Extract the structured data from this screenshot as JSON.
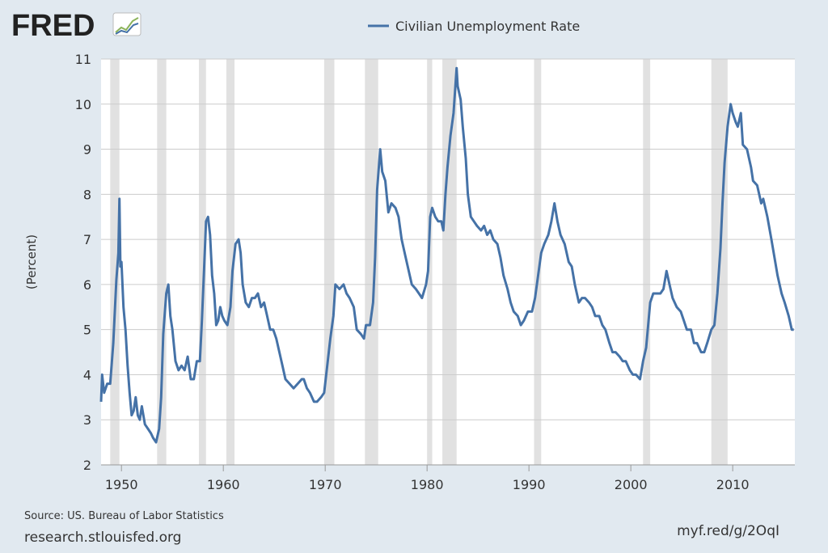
{
  "chart_data": {
    "type": "line",
    "logo": "FRED",
    "y_label": "(Percent)",
    "source": "Source: US. Bureau of Labor Statistics",
    "site": "research.stlouisfed.org",
    "short_link": "myf.red/g/2OqI",
    "recession_color": "#e1e1e1",
    "recessions": [
      [
        1948.9,
        1949.8
      ],
      [
        1953.5,
        1954.4
      ],
      [
        1957.6,
        1958.3
      ],
      [
        1960.3,
        1961.1
      ],
      [
        1969.9,
        1970.9
      ],
      [
        1973.9,
        1975.2
      ],
      [
        1980.0,
        1980.5
      ],
      [
        1981.5,
        1982.9
      ],
      [
        1990.5,
        1991.2
      ],
      [
        2001.2,
        2001.9
      ],
      [
        2007.9,
        2009.5
      ]
    ],
    "xlim": [
      1948,
      2016.1
    ],
    "xticks": [
      1950,
      1960,
      1970,
      1980,
      1990,
      2000,
      2010
    ],
    "ylim": [
      2,
      11
    ],
    "yticks": [
      2,
      3,
      4,
      5,
      6,
      7,
      8,
      9,
      10,
      11
    ],
    "grid": true,
    "legend": "top",
    "x": [
      1948.0,
      1948.1,
      1948.3,
      1948.6,
      1948.9,
      1949.2,
      1949.5,
      1949.7,
      1949.8,
      1949.9,
      1950.0,
      1950.2,
      1950.4,
      1950.6,
      1950.8,
      1951.0,
      1951.2,
      1951.4,
      1951.6,
      1951.8,
      1952.0,
      1952.3,
      1952.6,
      1952.9,
      1953.1,
      1953.4,
      1953.7,
      1953.9,
      1954.1,
      1954.4,
      1954.6,
      1954.8,
      1955.0,
      1955.3,
      1955.6,
      1955.9,
      1956.2,
      1956.5,
      1956.8,
      1957.1,
      1957.4,
      1957.7,
      1957.9,
      1958.1,
      1958.3,
      1958.5,
      1958.7,
      1958.9,
      1959.1,
      1959.3,
      1959.5,
      1959.7,
      1959.9,
      1960.1,
      1960.4,
      1960.7,
      1960.9,
      1961.2,
      1961.5,
      1961.7,
      1961.9,
      1962.2,
      1962.5,
      1962.8,
      1963.1,
      1963.4,
      1963.7,
      1964.0,
      1964.3,
      1964.6,
      1964.9,
      1965.2,
      1965.5,
      1965.8,
      1966.1,
      1966.5,
      1966.9,
      1967.3,
      1967.7,
      1967.9,
      1968.2,
      1968.5,
      1968.9,
      1969.2,
      1969.6,
      1969.9,
      1970.2,
      1970.5,
      1970.8,
      1971.0,
      1971.4,
      1971.8,
      1972.1,
      1972.4,
      1972.8,
      1973.1,
      1973.5,
      1973.8,
      1974.0,
      1974.4,
      1974.7,
      1974.9,
      1975.1,
      1975.4,
      1975.6,
      1975.9,
      1976.2,
      1976.5,
      1976.9,
      1977.2,
      1977.5,
      1977.9,
      1978.2,
      1978.5,
      1978.9,
      1979.2,
      1979.5,
      1979.9,
      1980.1,
      1980.3,
      1980.5,
      1980.8,
      1981.1,
      1981.4,
      1981.6,
      1981.8,
      1982.0,
      1982.3,
      1982.6,
      1982.9,
      1983.0,
      1983.3,
      1983.5,
      1983.8,
      1984.0,
      1984.3,
      1984.6,
      1984.9,
      1985.3,
      1985.6,
      1985.9,
      1986.2,
      1986.5,
      1986.9,
      1987.2,
      1987.5,
      1987.9,
      1988.2,
      1988.5,
      1988.9,
      1989.2,
      1989.5,
      1989.9,
      1990.3,
      1990.6,
      1990.9,
      1991.2,
      1991.5,
      1991.9,
      1992.2,
      1992.5,
      1992.8,
      1993.1,
      1993.5,
      1993.9,
      1994.2,
      1994.5,
      1994.9,
      1995.2,
      1995.5,
      1995.9,
      1996.2,
      1996.5,
      1996.9,
      1997.2,
      1997.5,
      1997.9,
      1998.2,
      1998.5,
      1998.9,
      1999.2,
      1999.5,
      1999.9,
      2000.2,
      2000.5,
      2000.9,
      2001.2,
      2001.5,
      2001.9,
      2002.2,
      2002.5,
      2002.9,
      2003.2,
      2003.5,
      2003.8,
      2004.1,
      2004.5,
      2004.9,
      2005.2,
      2005.5,
      2005.9,
      2006.2,
      2006.5,
      2006.9,
      2007.2,
      2007.5,
      2007.9,
      2008.2,
      2008.5,
      2008.8,
      2009.0,
      2009.2,
      2009.5,
      2009.8,
      2010.0,
      2010.3,
      2010.5,
      2010.8,
      2011.0,
      2011.4,
      2011.8,
      2012.0,
      2012.4,
      2012.8,
      2013.0,
      2013.4,
      2013.8,
      2014.1,
      2014.4,
      2014.8,
      2015.1,
      2015.5,
      2015.8,
      2016.0
    ],
    "series": [
      {
        "name": "Civilian Unemployment Rate",
        "color": "#4572a7",
        "values": [
          3.4,
          4.0,
          3.6,
          3.8,
          3.8,
          4.7,
          6.1,
          6.7,
          7.9,
          6.4,
          6.5,
          5.5,
          5.0,
          4.2,
          3.6,
          3.1,
          3.2,
          3.5,
          3.1,
          3.0,
          3.3,
          2.9,
          2.8,
          2.7,
          2.6,
          2.5,
          2.8,
          3.5,
          4.9,
          5.8,
          6.0,
          5.3,
          5.0,
          4.3,
          4.1,
          4.2,
          4.1,
          4.4,
          3.9,
          3.9,
          4.3,
          4.3,
          5.2,
          6.3,
          7.4,
          7.5,
          7.1,
          6.2,
          5.8,
          5.1,
          5.2,
          5.5,
          5.3,
          5.2,
          5.1,
          5.5,
          6.3,
          6.9,
          7.0,
          6.7,
          6.0,
          5.6,
          5.5,
          5.7,
          5.7,
          5.8,
          5.5,
          5.6,
          5.3,
          5.0,
          5.0,
          4.8,
          4.5,
          4.2,
          3.9,
          3.8,
          3.7,
          3.8,
          3.9,
          3.9,
          3.7,
          3.6,
          3.4,
          3.4,
          3.5,
          3.6,
          4.2,
          4.8,
          5.3,
          6.0,
          5.9,
          6.0,
          5.8,
          5.7,
          5.5,
          5.0,
          4.9,
          4.8,
          5.1,
          5.1,
          5.6,
          6.6,
          8.1,
          9.0,
          8.5,
          8.3,
          7.6,
          7.8,
          7.7,
          7.5,
          7.0,
          6.6,
          6.3,
          6.0,
          5.9,
          5.8,
          5.7,
          6.0,
          6.3,
          7.5,
          7.7,
          7.5,
          7.4,
          7.4,
          7.2,
          8.0,
          8.6,
          9.3,
          9.8,
          10.8,
          10.4,
          10.1,
          9.5,
          8.8,
          8.0,
          7.5,
          7.4,
          7.3,
          7.2,
          7.3,
          7.1,
          7.2,
          7.0,
          6.9,
          6.6,
          6.2,
          5.9,
          5.6,
          5.4,
          5.3,
          5.1,
          5.2,
          5.4,
          5.4,
          5.7,
          6.2,
          6.7,
          6.9,
          7.1,
          7.4,
          7.8,
          7.4,
          7.1,
          6.9,
          6.5,
          6.4,
          6.0,
          5.6,
          5.7,
          5.7,
          5.6,
          5.5,
          5.3,
          5.3,
          5.1,
          5.0,
          4.7,
          4.5,
          4.5,
          4.4,
          4.3,
          4.3,
          4.1,
          4.0,
          4.0,
          3.9,
          4.3,
          4.6,
          5.6,
          5.8,
          5.8,
          5.8,
          5.9,
          6.3,
          6.0,
          5.7,
          5.5,
          5.4,
          5.2,
          5.0,
          5.0,
          4.7,
          4.7,
          4.5,
          4.5,
          4.7,
          5.0,
          5.1,
          5.8,
          6.8,
          7.8,
          8.7,
          9.5,
          10.0,
          9.8,
          9.6,
          9.5,
          9.8,
          9.1,
          9.0,
          8.6,
          8.3,
          8.2,
          7.8,
          7.9,
          7.5,
          7.0,
          6.6,
          6.2,
          5.8,
          5.6,
          5.3,
          5.0,
          5.0
        ]
      }
    ]
  }
}
